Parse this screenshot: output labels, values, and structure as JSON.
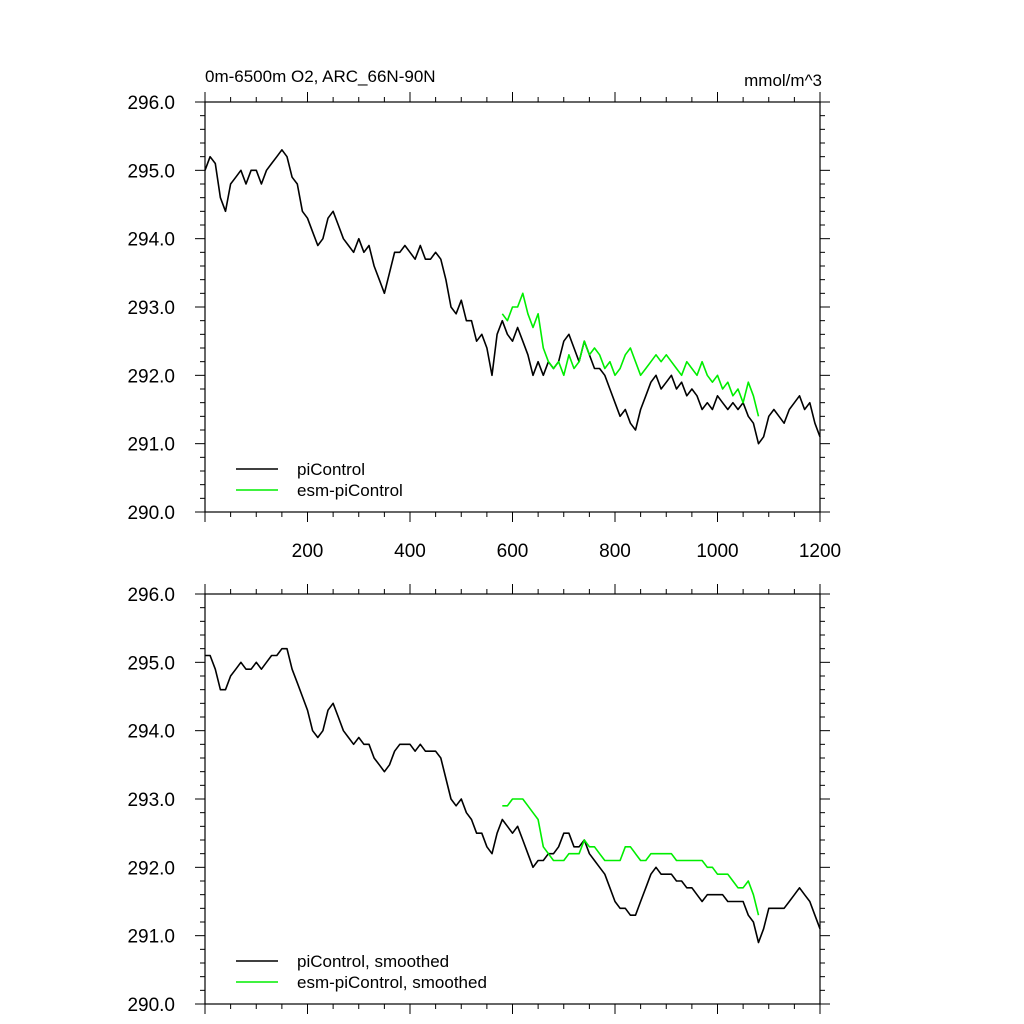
{
  "chart_data": [
    {
      "type": "line",
      "title": "0m-6500m O2, ARC_66N-90N",
      "units": "mmol/m^3",
      "xlim": [
        0,
        1200
      ],
      "ylim": [
        290.0,
        296.0
      ],
      "x_ticks": [
        200,
        400,
        600,
        800,
        1000,
        1200
      ],
      "x_tick_labels": [
        "200",
        "400",
        "600",
        "800",
        "1000",
        "1200"
      ],
      "y_ticks": [
        290.0,
        291.0,
        292.0,
        293.0,
        294.0,
        295.0,
        296.0
      ],
      "y_tick_labels": [
        "290.0",
        "291.0",
        "292.0",
        "293.0",
        "294.0",
        "295.0",
        "296.0"
      ],
      "legend": [
        "piControl",
        "esm-piControl"
      ],
      "series": [
        {
          "name": "piControl",
          "color": "#000000",
          "x": [
            0,
            10,
            20,
            30,
            40,
            50,
            60,
            70,
            80,
            90,
            100,
            110,
            120,
            130,
            140,
            150,
            160,
            170,
            180,
            190,
            200,
            210,
            220,
            230,
            240,
            250,
            260,
            270,
            280,
            290,
            300,
            310,
            320,
            330,
            340,
            350,
            360,
            370,
            380,
            390,
            400,
            410,
            420,
            430,
            440,
            450,
            460,
            470,
            480,
            490,
            500,
            510,
            520,
            530,
            540,
            550,
            560,
            570,
            580,
            590,
            600,
            610,
            620,
            630,
            640,
            650,
            660,
            670,
            680,
            690,
            700,
            710,
            720,
            730,
            740,
            750,
            760,
            770,
            780,
            790,
            800,
            810,
            820,
            830,
            840,
            850,
            860,
            870,
            880,
            890,
            900,
            910,
            920,
            930,
            940,
            950,
            960,
            970,
            980,
            990,
            1000,
            1010,
            1020,
            1030,
            1040,
            1050,
            1060,
            1070,
            1080,
            1090,
            1100,
            1110,
            1120,
            1130,
            1140,
            1150,
            1160,
            1170,
            1180,
            1190,
            1200
          ],
          "y": [
            295.0,
            295.2,
            295.1,
            294.6,
            294.4,
            294.8,
            294.9,
            295.0,
            294.8,
            295.0,
            295.0,
            294.8,
            295.0,
            295.1,
            295.2,
            295.3,
            295.2,
            294.9,
            294.8,
            294.4,
            294.3,
            294.1,
            293.9,
            294.0,
            294.3,
            294.4,
            294.2,
            294.0,
            293.9,
            293.8,
            294.0,
            293.8,
            293.9,
            293.6,
            293.4,
            293.2,
            293.5,
            293.8,
            293.8,
            293.9,
            293.8,
            293.7,
            293.9,
            293.7,
            293.7,
            293.8,
            293.7,
            293.4,
            293.0,
            292.9,
            293.1,
            292.8,
            292.8,
            292.5,
            292.6,
            292.4,
            292.0,
            292.6,
            292.8,
            292.6,
            292.5,
            292.7,
            292.5,
            292.3,
            292.0,
            292.2,
            292.0,
            292.2,
            292.1,
            292.2,
            292.5,
            292.6,
            292.4,
            292.2,
            292.5,
            292.3,
            292.1,
            292.1,
            292.0,
            291.8,
            291.6,
            291.4,
            291.5,
            291.3,
            291.2,
            291.5,
            291.7,
            291.9,
            292.0,
            291.8,
            291.9,
            292.0,
            291.8,
            291.9,
            291.7,
            291.8,
            291.7,
            291.5,
            291.6,
            291.5,
            291.7,
            291.6,
            291.5,
            291.6,
            291.5,
            291.6,
            291.4,
            291.3,
            291.0,
            291.1,
            291.4,
            291.5,
            291.4,
            291.3,
            291.5,
            291.6,
            291.7,
            291.5,
            291.6,
            291.3,
            291.1
          ]
        },
        {
          "name": "esm-piControl",
          "color": "#00ee00",
          "x": [
            580,
            590,
            600,
            610,
            620,
            630,
            640,
            650,
            660,
            670,
            680,
            690,
            700,
            710,
            720,
            730,
            740,
            750,
            760,
            770,
            780,
            790,
            800,
            810,
            820,
            830,
            840,
            850,
            860,
            870,
            880,
            890,
            900,
            910,
            920,
            930,
            940,
            950,
            960,
            970,
            980,
            990,
            1000,
            1010,
            1020,
            1030,
            1040,
            1050,
            1060,
            1070,
            1080
          ],
          "y": [
            292.9,
            292.8,
            293.0,
            293.0,
            293.2,
            292.9,
            292.7,
            292.9,
            292.4,
            292.2,
            292.1,
            292.2,
            292.0,
            292.3,
            292.1,
            292.2,
            292.5,
            292.3,
            292.4,
            292.3,
            292.1,
            292.2,
            292.0,
            292.1,
            292.3,
            292.4,
            292.2,
            292.0,
            292.1,
            292.2,
            292.3,
            292.2,
            292.3,
            292.2,
            292.1,
            292.0,
            292.2,
            292.1,
            292.0,
            292.2,
            292.0,
            291.9,
            292.0,
            291.8,
            291.9,
            291.7,
            291.8,
            291.6,
            291.9,
            291.7,
            291.4
          ]
        }
      ]
    },
    {
      "type": "line",
      "title": "",
      "xlim": [
        0,
        1200
      ],
      "ylim": [
        290.0,
        296.0
      ],
      "y_ticks": [
        290.0,
        291.0,
        292.0,
        293.0,
        294.0,
        295.0,
        296.0
      ],
      "y_tick_labels": [
        "290.0",
        "291.0",
        "292.0",
        "293.0",
        "294.0",
        "295.0",
        "296.0"
      ],
      "legend": [
        "piControl, smoothed",
        "esm-piControl, smoothed"
      ],
      "series": [
        {
          "name": "piControl, smoothed",
          "color": "#000000",
          "x": [
            0,
            10,
            20,
            30,
            40,
            50,
            60,
            70,
            80,
            90,
            100,
            110,
            120,
            130,
            140,
            150,
            160,
            170,
            180,
            190,
            200,
            210,
            220,
            230,
            240,
            250,
            260,
            270,
            280,
            290,
            300,
            310,
            320,
            330,
            340,
            350,
            360,
            370,
            380,
            390,
            400,
            410,
            420,
            430,
            440,
            450,
            460,
            470,
            480,
            490,
            500,
            510,
            520,
            530,
            540,
            550,
            560,
            570,
            580,
            590,
            600,
            610,
            620,
            630,
            640,
            650,
            660,
            670,
            680,
            690,
            700,
            710,
            720,
            730,
            740,
            750,
            760,
            770,
            780,
            790,
            800,
            810,
            820,
            830,
            840,
            850,
            860,
            870,
            880,
            890,
            900,
            910,
            920,
            930,
            940,
            950,
            960,
            970,
            980,
            990,
            1000,
            1010,
            1020,
            1030,
            1040,
            1050,
            1060,
            1070,
            1080,
            1090,
            1100,
            1110,
            1120,
            1130,
            1140,
            1150,
            1160,
            1170,
            1180,
            1190,
            1200
          ],
          "y": [
            295.1,
            295.1,
            294.9,
            294.6,
            294.6,
            294.8,
            294.9,
            295.0,
            294.9,
            294.9,
            295.0,
            294.9,
            295.0,
            295.1,
            295.1,
            295.2,
            295.2,
            294.9,
            294.7,
            294.5,
            294.3,
            294.0,
            293.9,
            294.0,
            294.3,
            294.4,
            294.2,
            294.0,
            293.9,
            293.8,
            293.9,
            293.8,
            293.8,
            293.6,
            293.5,
            293.4,
            293.5,
            293.7,
            293.8,
            293.8,
            293.8,
            293.7,
            293.8,
            293.7,
            293.7,
            293.7,
            293.6,
            293.3,
            293.0,
            292.9,
            293.0,
            292.8,
            292.7,
            292.5,
            292.5,
            292.3,
            292.2,
            292.5,
            292.7,
            292.6,
            292.5,
            292.6,
            292.4,
            292.2,
            292.0,
            292.1,
            292.1,
            292.2,
            292.2,
            292.3,
            292.5,
            292.5,
            292.3,
            292.3,
            292.4,
            292.2,
            292.1,
            292.0,
            291.9,
            291.7,
            291.5,
            291.4,
            291.4,
            291.3,
            291.3,
            291.5,
            291.7,
            291.9,
            292.0,
            291.9,
            291.9,
            291.9,
            291.8,
            291.8,
            291.7,
            291.7,
            291.6,
            291.5,
            291.6,
            291.6,
            291.6,
            291.6,
            291.5,
            291.5,
            291.5,
            291.5,
            291.3,
            291.2,
            290.9,
            291.1,
            291.4,
            291.4,
            291.4,
            291.4,
            291.5,
            291.6,
            291.7,
            291.6,
            291.5,
            291.3,
            291.1
          ]
        },
        {
          "name": "esm-piControl, smoothed",
          "color": "#00ee00",
          "x": [
            580,
            590,
            600,
            610,
            620,
            630,
            640,
            650,
            660,
            670,
            680,
            690,
            700,
            710,
            720,
            730,
            740,
            750,
            760,
            770,
            780,
            790,
            800,
            810,
            820,
            830,
            840,
            850,
            860,
            870,
            880,
            890,
            900,
            910,
            920,
            930,
            940,
            950,
            960,
            970,
            980,
            990,
            1000,
            1010,
            1020,
            1030,
            1040,
            1050,
            1060,
            1070,
            1080
          ],
          "y": [
            292.9,
            292.9,
            293.0,
            293.0,
            293.0,
            292.9,
            292.8,
            292.7,
            292.3,
            292.2,
            292.1,
            292.1,
            292.1,
            292.2,
            292.2,
            292.2,
            292.4,
            292.3,
            292.3,
            292.2,
            292.1,
            292.1,
            292.1,
            292.1,
            292.3,
            292.3,
            292.2,
            292.1,
            292.1,
            292.2,
            292.2,
            292.2,
            292.2,
            292.2,
            292.1,
            292.1,
            292.1,
            292.1,
            292.1,
            292.1,
            292.0,
            292.0,
            291.9,
            291.9,
            291.9,
            291.8,
            291.7,
            291.7,
            291.8,
            291.6,
            291.3
          ]
        }
      ]
    }
  ]
}
